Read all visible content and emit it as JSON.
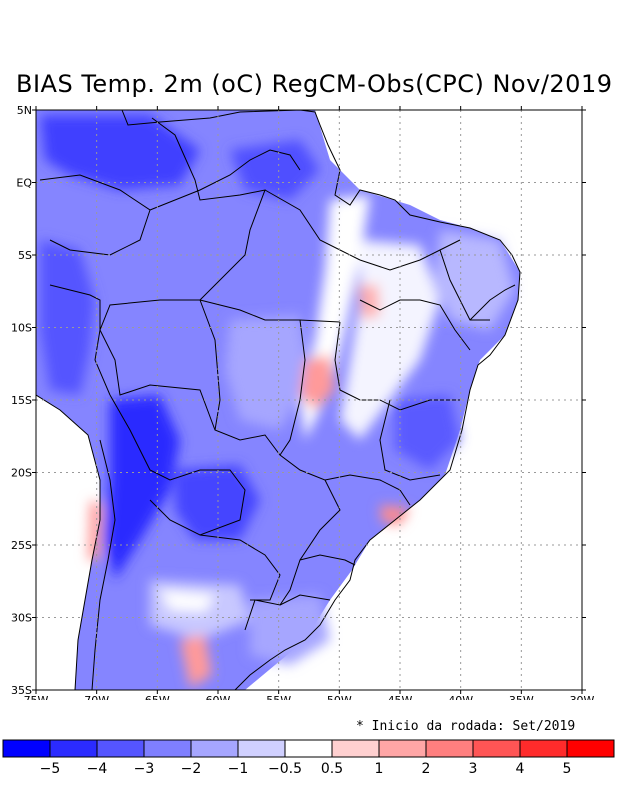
{
  "title": "BIAS Temp. 2m (oC) RegCM-Obs(CPC) Nov/2019",
  "note": "* Inicio da rodada: Set/2019",
  "axes": {
    "lat_labels": [
      "5N",
      "EQ",
      "5S",
      "10S",
      "15S",
      "20S",
      "25S",
      "30S",
      "35S"
    ],
    "lat_values": [
      5,
      0,
      -5,
      -10,
      -15,
      -20,
      -25,
      -30,
      -35
    ],
    "lon_labels": [
      "75W",
      "70W",
      "65W",
      "60W",
      "55W",
      "50W",
      "45W",
      "40W",
      "35W",
      "30W"
    ],
    "lon_values": [
      -75,
      -70,
      -65,
      -60,
      -55,
      -50,
      -45,
      -40,
      -35,
      -30
    ]
  },
  "legend": {
    "colors": [
      "#0000ff",
      "#2b2bff",
      "#5555ff",
      "#7f7fff",
      "#a6a6ff",
      "#d0d0ff",
      "#ffffff",
      "#ffd0d0",
      "#ffa6a6",
      "#ff7f7f",
      "#ff5555",
      "#ff2b2b",
      "#ff0000"
    ],
    "labels": [
      "−5",
      "−4",
      "−3",
      "−2",
      "−1",
      "−0.5",
      "0.5",
      "1",
      "2",
      "3",
      "4",
      "5"
    ]
  }
}
